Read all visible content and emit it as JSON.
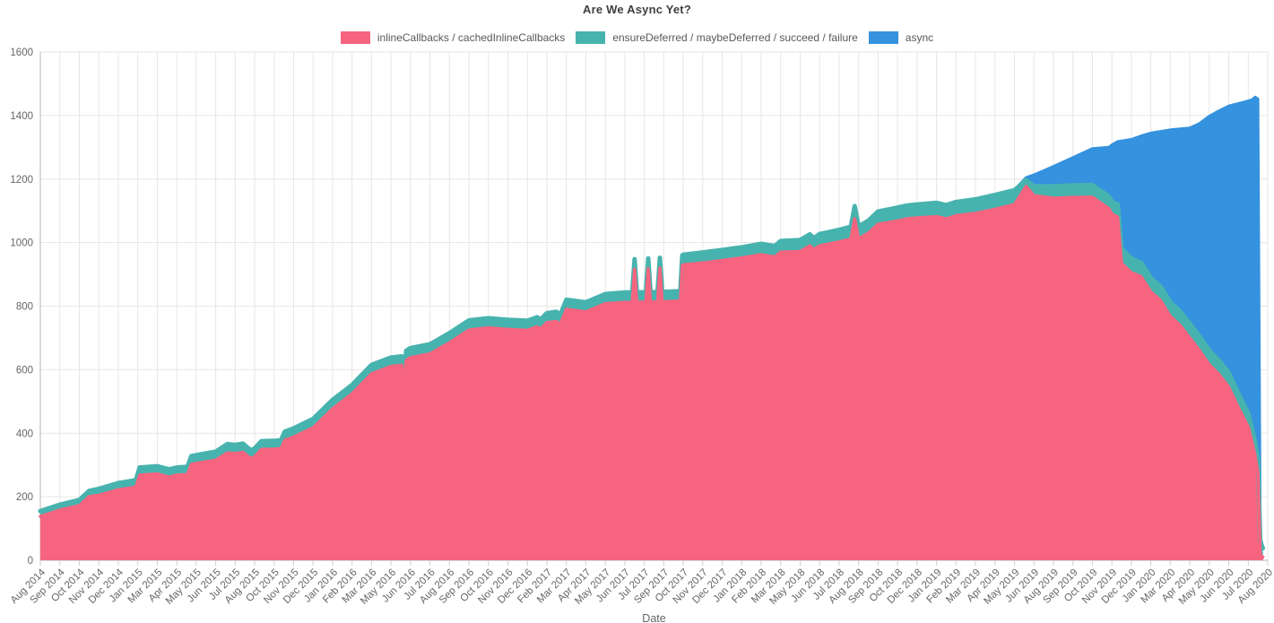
{
  "page": {
    "title": "Are We Async Yet?",
    "x_axis_label": "Date"
  },
  "legend": {
    "items": [
      {
        "label": "inlineCallbacks / cachedInlineCallbacks",
        "color": "#f6647f"
      },
      {
        "label": "ensureDeferred / maybeDeferred / succeed / failure",
        "color": "#47b3ae"
      },
      {
        "label": "async",
        "color": "#3492de"
      }
    ]
  },
  "chart_data": {
    "type": "area",
    "stacked": true,
    "title": "Are We Async Yet?",
    "xlabel": "Date",
    "ylabel": "",
    "ylim": [
      0,
      1600
    ],
    "yticks": [
      0,
      200,
      400,
      600,
      800,
      1000,
      1200,
      1400,
      1600
    ],
    "grid": true,
    "legend_position": "top",
    "colors": {
      "grid": "#e6e6e6",
      "axis": "#b4b4b4",
      "tick_stub": "#cfcfcf",
      "tick_text": "#666666"
    },
    "x_tick_labels": [
      "Aug 2014",
      "Sep 2014",
      "Oct 2014",
      "Nov 2014",
      "Dec 2014",
      "Jan 2015",
      "Mar 2015",
      "Apr 2015",
      "May 2015",
      "Jun 2015",
      "Jul 2015",
      "Aug 2015",
      "Oct 2015",
      "Nov 2015",
      "Dec 2015",
      "Jan 2016",
      "Feb 2016",
      "Mar 2016",
      "May 2016",
      "Jun 2016",
      "Jul 2016",
      "Aug 2016",
      "Sep 2016",
      "Oct 2016",
      "Nov 2016",
      "Dec 2016",
      "Feb 2017",
      "Mar 2017",
      "Apr 2017",
      "May 2017",
      "Jun 2017",
      "Jul 2017",
      "Sep 2017",
      "Oct 2017",
      "Nov 2017",
      "Dec 2017",
      "Jan 2018",
      "Feb 2018",
      "Mar 2018",
      "May 2018",
      "Jun 2018",
      "Jul 2018",
      "Aug 2018",
      "Sep 2018",
      "Oct 2018",
      "Dec 2018",
      "Jan 2019",
      "Feb 2019",
      "Mar 2019",
      "Apr 2019",
      "May 2019",
      "Jun 2019",
      "Aug 2019",
      "Sep 2019",
      "Oct 2019",
      "Nov 2019",
      "Dec 2019",
      "Jan 2020",
      "Mar 2020",
      "Apr 2020",
      "May 2020",
      "Jun 2020",
      "Jul 2020",
      "Aug 2020"
    ],
    "series": [
      {
        "name": "inlineCallbacks / cachedInlineCallbacks",
        "color": "#f6647f",
        "values": [
          138,
          158,
          172,
          205,
          222,
          230,
          272,
          268,
          305,
          315,
          336,
          326,
          350,
          388,
          417,
          477,
          524,
          587,
          610,
          638,
          650,
          685,
          725,
          732,
          727,
          724,
          748,
          790,
          782,
          808,
          812,
          813,
          814,
          930,
          936,
          944,
          952,
          962,
          970,
          972,
          990,
          1002,
          1012,
          1058,
          1068,
          1078,
          1082,
          1085,
          1092,
          1105,
          1120,
          1148,
          1140,
          1142,
          1143,
          1090,
          905,
          845,
          768,
          700,
          616,
          545,
          420,
          14
        ]
      },
      {
        "name": "ensureDeferred / maybeDeferred / succeed / failure",
        "color": "#47b3ae",
        "values": [
          17,
          17,
          18,
          20,
          21,
          22,
          24,
          24,
          26,
          27,
          27,
          26,
          26,
          27,
          28,
          28,
          28,
          28,
          28,
          30,
          30,
          30,
          30,
          30,
          30,
          30,
          30,
          30,
          30,
          30,
          31,
          31,
          31,
          32,
          33,
          33,
          33,
          34,
          35,
          36,
          37,
          38,
          39,
          40,
          42,
          42,
          43,
          43,
          44,
          45,
          45,
          29,
          37,
          38,
          38,
          38,
          45,
          44,
          44,
          45,
          44,
          45,
          42,
          38
        ]
      },
      {
        "name": "async",
        "color": "#3492de",
        "values": [
          0,
          0,
          0,
          0,
          0,
          0,
          0,
          0,
          0,
          0,
          0,
          0,
          0,
          0,
          0,
          0,
          0,
          0,
          0,
          0,
          0,
          0,
          0,
          0,
          0,
          0,
          0,
          0,
          0,
          0,
          0,
          0,
          0,
          0,
          0,
          0,
          0,
          0,
          0,
          0,
          0,
          0,
          0,
          0,
          0,
          0,
          0,
          0,
          0,
          0,
          0,
          36,
          63,
          88,
          115,
          180,
          375,
          456,
          543,
          616,
          738,
          840,
          984,
          18
        ]
      }
    ],
    "samples_format": [
      "x_tick_index",
      "inlineCallbacks_cachedInlineCallbacks",
      "ensureDeferred_maybeDeferred_succeed_failure",
      "async"
    ],
    "samples": [
      [
        0,
        138,
        17,
        0
      ],
      [
        1,
        158,
        17,
        0
      ],
      [
        2,
        172,
        18,
        0
      ],
      [
        2.5,
        200,
        18,
        0
      ],
      [
        3,
        205,
        20,
        0
      ],
      [
        4,
        222,
        21,
        0
      ],
      [
        4.9,
        230,
        22,
        0
      ],
      [
        5.1,
        268,
        24,
        0
      ],
      [
        6,
        272,
        24,
        0
      ],
      [
        6.6,
        262,
        24,
        0
      ],
      [
        7,
        268,
        24,
        0
      ],
      [
        7.55,
        270,
        24,
        0
      ],
      [
        7.75,
        302,
        26,
        0
      ],
      [
        8,
        305,
        26,
        0
      ],
      [
        9,
        315,
        27,
        0
      ],
      [
        9.6,
        338,
        28,
        0
      ],
      [
        10,
        336,
        27,
        0
      ],
      [
        10.4,
        340,
        27,
        0
      ],
      [
        10.8,
        320,
        26,
        0
      ],
      [
        11,
        326,
        26,
        0
      ],
      [
        11.35,
        349,
        26,
        0
      ],
      [
        12,
        350,
        26,
        0
      ],
      [
        12.35,
        352,
        26,
        0
      ],
      [
        12.55,
        378,
        27,
        0
      ],
      [
        13,
        388,
        27,
        0
      ],
      [
        14,
        417,
        28,
        0
      ],
      [
        15,
        477,
        28,
        0
      ],
      [
        16,
        524,
        28,
        0
      ],
      [
        17,
        587,
        28,
        0
      ],
      [
        18,
        610,
        28,
        0
      ],
      [
        18.55,
        614,
        28,
        0
      ],
      [
        18.65,
        547,
        28,
        0
      ],
      [
        18.78,
        630,
        30,
        0
      ],
      [
        19,
        638,
        30,
        0
      ],
      [
        20,
        650,
        30,
        0
      ],
      [
        21,
        685,
        30,
        0
      ],
      [
        22,
        725,
        30,
        0
      ],
      [
        23,
        732,
        30,
        0
      ],
      [
        24,
        727,
        30,
        0
      ],
      [
        25,
        724,
        30,
        0
      ],
      [
        25.5,
        735,
        30,
        0
      ],
      [
        25.68,
        728,
        30,
        0
      ],
      [
        26,
        748,
        30,
        0
      ],
      [
        26.5,
        752,
        30,
        0
      ],
      [
        26.68,
        742,
        30,
        0
      ],
      [
        27,
        790,
        30,
        0
      ],
      [
        28,
        782,
        30,
        0
      ],
      [
        29,
        808,
        30,
        0
      ],
      [
        30,
        812,
        31,
        0
      ],
      [
        30.38,
        812,
        31,
        0
      ],
      [
        30.5,
        916,
        32,
        0
      ],
      [
        30.62,
        812,
        31,
        0
      ],
      [
        31,
        813,
        31,
        0
      ],
      [
        31.08,
        813,
        31,
        0
      ],
      [
        31.2,
        918,
        32,
        0
      ],
      [
        31.32,
        813,
        31,
        0
      ],
      [
        31.68,
        813,
        31,
        0
      ],
      [
        31.8,
        920,
        32,
        0
      ],
      [
        31.92,
        814,
        31,
        0
      ],
      [
        32,
        814,
        31,
        0
      ],
      [
        32.85,
        816,
        31,
        0
      ],
      [
        32.95,
        928,
        32,
        0
      ],
      [
        33,
        930,
        32,
        0
      ],
      [
        34,
        936,
        33,
        0
      ],
      [
        35,
        944,
        33,
        0
      ],
      [
        36,
        952,
        33,
        0
      ],
      [
        37,
        962,
        34,
        0
      ],
      [
        37.7,
        955,
        34,
        0
      ],
      [
        38,
        970,
        35,
        0
      ],
      [
        39,
        972,
        36,
        0
      ],
      [
        39.5,
        990,
        36,
        0
      ],
      [
        39.7,
        978,
        36,
        0
      ],
      [
        40,
        990,
        37,
        0
      ],
      [
        41,
        1002,
        38,
        0
      ],
      [
        41.6,
        1012,
        38,
        0
      ],
      [
        41.8,
        1075,
        40,
        0
      ],
      [
        42,
        1012,
        39,
        0
      ],
      [
        42.5,
        1030,
        39,
        0
      ],
      [
        43,
        1058,
        40,
        0
      ],
      [
        44,
        1068,
        42,
        0
      ],
      [
        44.5,
        1075,
        42,
        0
      ],
      [
        45,
        1078,
        42,
        0
      ],
      [
        46,
        1082,
        43,
        0
      ],
      [
        46.5,
        1075,
        43,
        0
      ],
      [
        47,
        1085,
        43,
        0
      ],
      [
        48,
        1092,
        44,
        0
      ],
      [
        49,
        1105,
        45,
        0
      ],
      [
        50,
        1120,
        45,
        0
      ],
      [
        50.6,
        1177,
        20,
        8
      ],
      [
        51,
        1148,
        29,
        36
      ],
      [
        52,
        1140,
        37,
        63
      ],
      [
        53,
        1142,
        38,
        88
      ],
      [
        54,
        1143,
        38,
        115
      ],
      [
        54.85,
        1107,
        38,
        155
      ],
      [
        55,
        1090,
        38,
        180
      ],
      [
        55.3,
        1080,
        40,
        198
      ],
      [
        55.5,
        935,
        45,
        340
      ],
      [
        56,
        905,
        45,
        375
      ],
      [
        56.5,
        893,
        44,
        399
      ],
      [
        57,
        845,
        44,
        456
      ],
      [
        57.5,
        818,
        44,
        488
      ],
      [
        58,
        768,
        44,
        543
      ],
      [
        58.5,
        740,
        44,
        574
      ],
      [
        59,
        700,
        45,
        616
      ],
      [
        59.5,
        660,
        45,
        670
      ],
      [
        60,
        616,
        44,
        738
      ],
      [
        60.5,
        585,
        44,
        786
      ],
      [
        61,
        545,
        45,
        840
      ],
      [
        61.5,
        480,
        44,
        914
      ],
      [
        62,
        420,
        42,
        984
      ],
      [
        62.2,
        370,
        42,
        1038
      ],
      [
        62.35,
        330,
        40,
        1088
      ],
      [
        62.5,
        275,
        40,
        1137
      ],
      [
        62.62,
        16,
        40,
        16
      ],
      [
        62.75,
        10,
        28,
        5
      ]
    ]
  }
}
